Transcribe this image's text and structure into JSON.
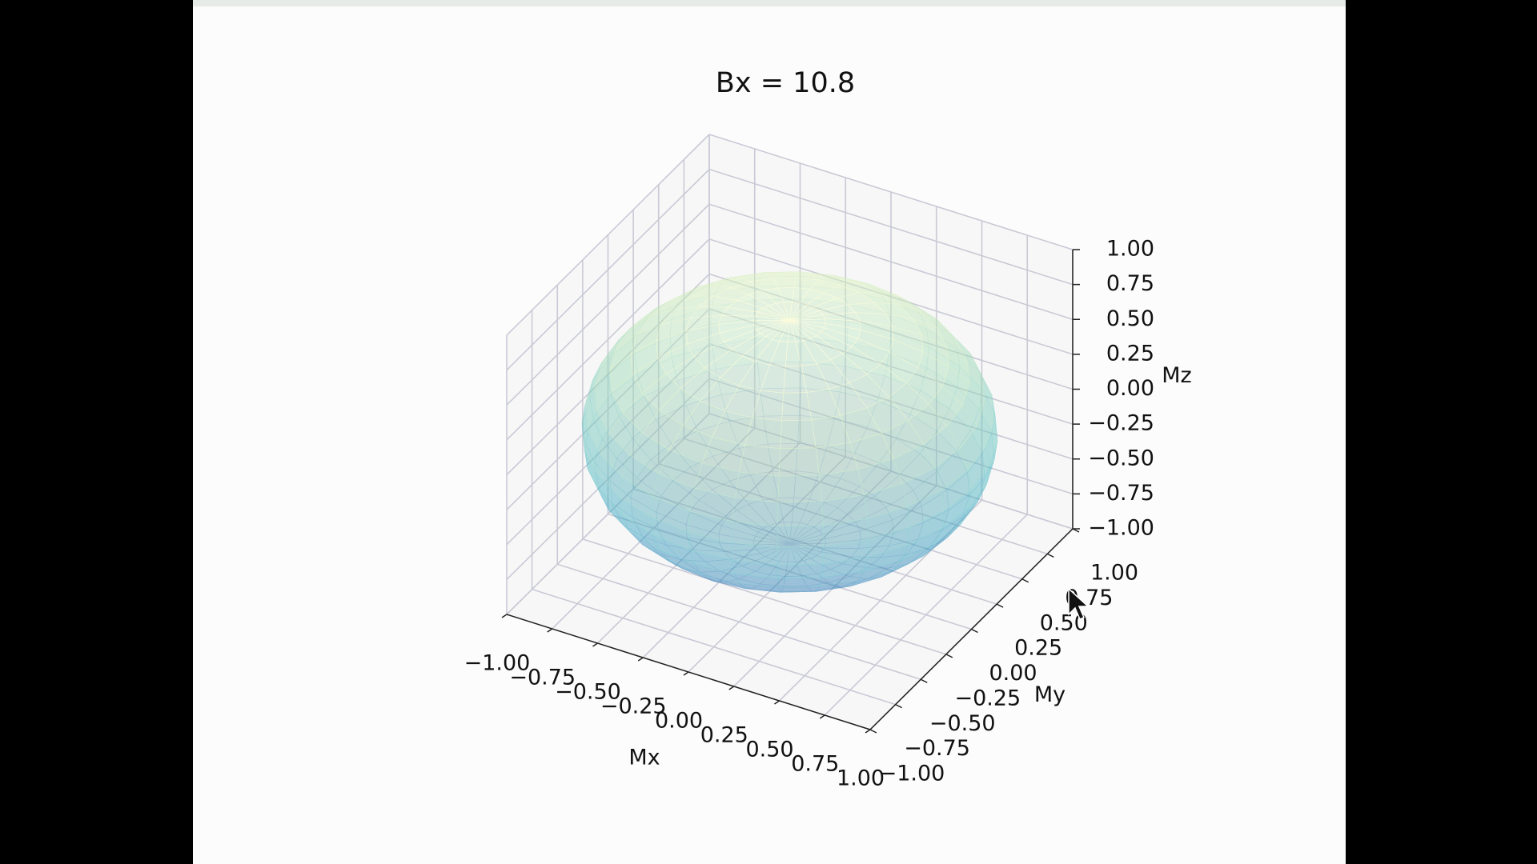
{
  "chart_data": {
    "type": "surface3d",
    "title": "Bx = 10.8",
    "xlabel": "Mx",
    "ylabel": "My",
    "zlabel": "Mz",
    "xlim": [
      -1,
      1
    ],
    "ylim": [
      -1,
      1
    ],
    "zlim": [
      -1,
      1
    ],
    "xticks": [
      {
        "value": -1,
        "label": "−1.00"
      },
      {
        "value": -0.75,
        "label": "−0.75"
      },
      {
        "value": -0.5,
        "label": "−0.50"
      },
      {
        "value": -0.25,
        "label": "−0.25"
      },
      {
        "value": 0,
        "label": "0.00"
      },
      {
        "value": 0.25,
        "label": "0.25"
      },
      {
        "value": 0.5,
        "label": "0.50"
      },
      {
        "value": 0.75,
        "label": "0.75"
      },
      {
        "value": 1,
        "label": "1.00"
      }
    ],
    "yticks": [
      {
        "value": -1,
        "label": "−1.00"
      },
      {
        "value": -0.75,
        "label": "−0.75"
      },
      {
        "value": -0.5,
        "label": "−0.50"
      },
      {
        "value": -0.25,
        "label": "−0.25"
      },
      {
        "value": 0,
        "label": "0.00"
      },
      {
        "value": 0.25,
        "label": "0.25"
      },
      {
        "value": 0.5,
        "label": "0.50"
      },
      {
        "value": 0.75,
        "label": "0.75"
      },
      {
        "value": 1,
        "label": "1.00"
      }
    ],
    "zticks": [
      {
        "value": -1,
        "label": "−1.00"
      },
      {
        "value": -0.75,
        "label": "−0.75"
      },
      {
        "value": -0.5,
        "label": "−0.50"
      },
      {
        "value": -0.25,
        "label": "−0.25"
      },
      {
        "value": 0,
        "label": "0.00"
      },
      {
        "value": 0.25,
        "label": "0.25"
      },
      {
        "value": 0.5,
        "label": "0.50"
      },
      {
        "value": 0.75,
        "label": "0.75"
      },
      {
        "value": 1,
        "label": "1.00"
      }
    ],
    "grid": true,
    "surface": {
      "shape": "ellipsoid",
      "center": [
        0,
        0,
        0
      ],
      "radii": [
        1,
        1,
        0.8
      ],
      "colormap": [
        "#3b58a8",
        "#2c7fb8",
        "#41b6c4",
        "#7fcdbb",
        "#c7e9b4",
        "#ffffcc"
      ],
      "alpha": 0.6
    }
  }
}
